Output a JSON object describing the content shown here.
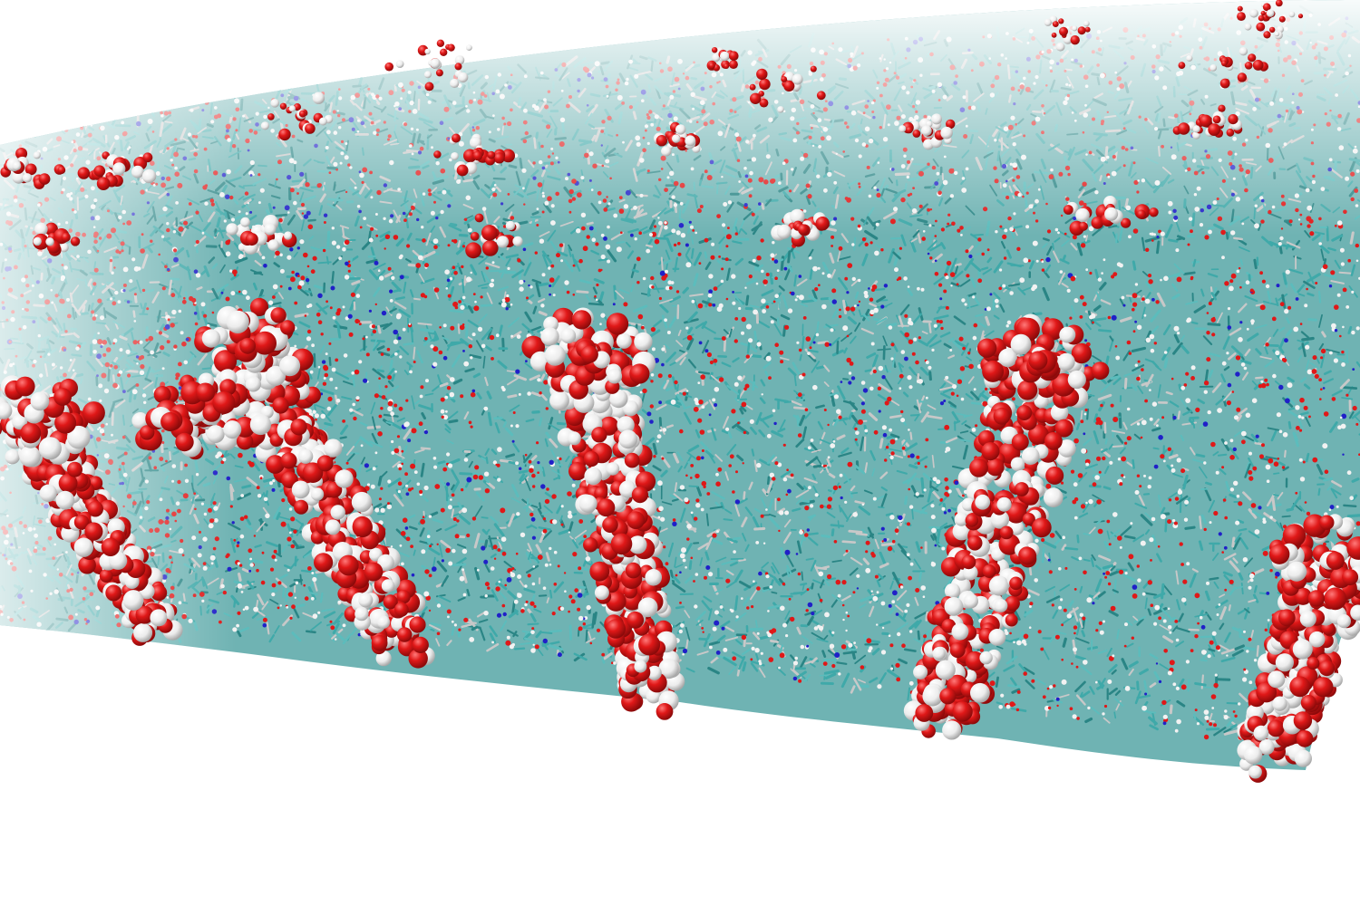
{
  "scene": {
    "subject": "membrane-slab-molecular-render",
    "colors": {
      "background": "#ffffff",
      "carbon": "#3fa9a9",
      "carbon_dark": "#2a8585",
      "oxygen": "#e01818",
      "oxygen_dark": "#a80c0c",
      "hydrogen": "#f2f2f2",
      "hydrogen_shade": "#c8c8c8",
      "nitrogen": "#2020c8"
    },
    "protein_column_count": 5,
    "surface_cluster_count": 18
  }
}
